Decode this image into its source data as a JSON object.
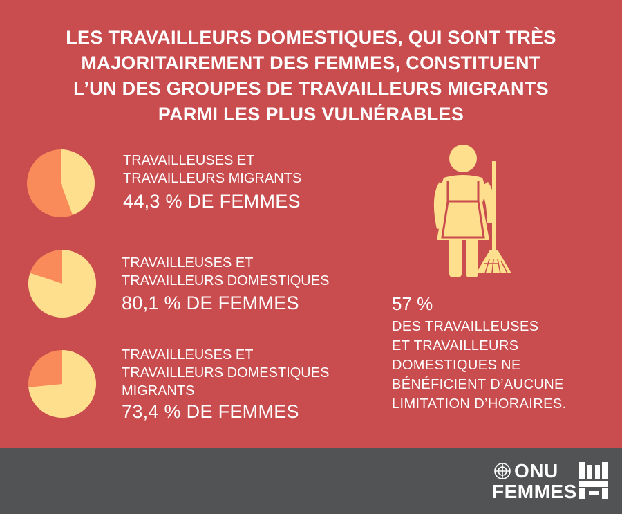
{
  "headline": [
    "LES TRAVAILLEURS DOMESTIQUES, QUI SONT TRÈS",
    "MAJORITAIREMENT DES FEMMES, CONSTITUENT",
    "L’UN DES GROUPES DE TRAVAILLEURS MIGRANTS",
    "PARMI LES PLUS VULNÉRABLES"
  ],
  "stats": [
    {
      "label_lines": [
        "TRAVAILLEUSES ET",
        "TRAVAILLEURS MIGRANTS"
      ],
      "value": "44,3 % DE FEMMES",
      "percent": 44.3
    },
    {
      "label_lines": [
        "TRAVAILLEUSES ET",
        "TRAVAILLEURS DOMESTIQUES"
      ],
      "value": "80,1 % DE FEMMES",
      "percent": 80.1
    },
    {
      "label_lines": [
        "TRAVAILLEUSES ET",
        "TRAVAILLEURS DOMESTIQUES",
        "MIGRANTS"
      ],
      "value": "73,4 % DE FEMMES",
      "percent": 73.4
    }
  ],
  "side": {
    "value": "57 %",
    "text_lines": [
      "DES TRAVAILLEUSES",
      "ET TRAVAILLEURS",
      "DOMESTIQUES NE",
      "BÉNÉFICIENT D’AUCUNE",
      "LIMITATION D’HORAIRES."
    ],
    "icon": "domestic-worker-with-broom-icon"
  },
  "logo": {
    "line1": "ONU",
    "line2": "FEMMES",
    "emblem": "un-emblem-icon"
  },
  "colors": {
    "background": "#c94c4e",
    "pie_women": "#fddf8e",
    "pie_rest": "#f98a5a",
    "footer": "#525354"
  }
}
